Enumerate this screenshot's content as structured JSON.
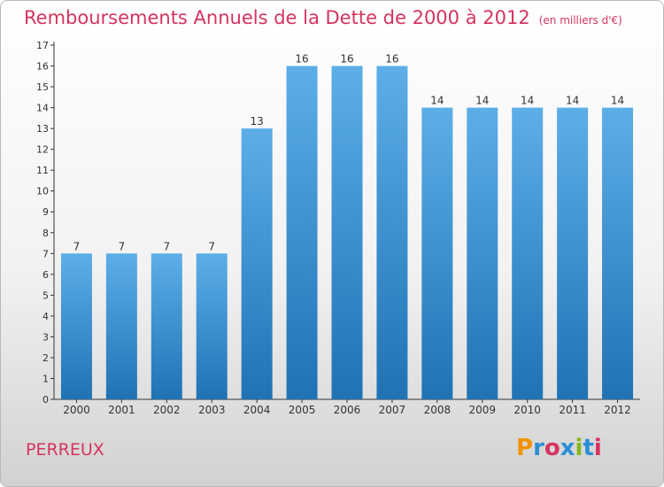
{
  "header": {
    "title": "Remboursements Annuels de la Dette de 2000 à 2012",
    "subtitle": "(en milliers d'€)"
  },
  "footer": {
    "city": "PERREUX",
    "logo_text": "Proxiti"
  },
  "colors": {
    "accent": "#d6335e",
    "bar_top": "#5daee8",
    "bar_bottom": "#1f73b4",
    "logo_letters": [
      "#f39200",
      "#2a8fd6",
      "#d6335e",
      "#2a8fd6",
      "#86b817",
      "#2a8fd6",
      "#d6335e"
    ]
  },
  "chart_data": {
    "type": "bar",
    "categories": [
      "2000",
      "2001",
      "2002",
      "2003",
      "2004",
      "2005",
      "2006",
      "2007",
      "2008",
      "2009",
      "2010",
      "2011",
      "2012"
    ],
    "values": [
      7,
      7,
      7,
      7,
      13,
      16,
      16,
      16,
      14,
      14,
      14,
      14,
      14
    ],
    "ylim": [
      0,
      17
    ],
    "yticks": [
      0,
      1,
      2,
      3,
      4,
      5,
      6,
      7,
      8,
      9,
      10,
      11,
      12,
      13,
      14,
      15,
      16,
      17
    ],
    "grid": false,
    "data_labels": true
  }
}
